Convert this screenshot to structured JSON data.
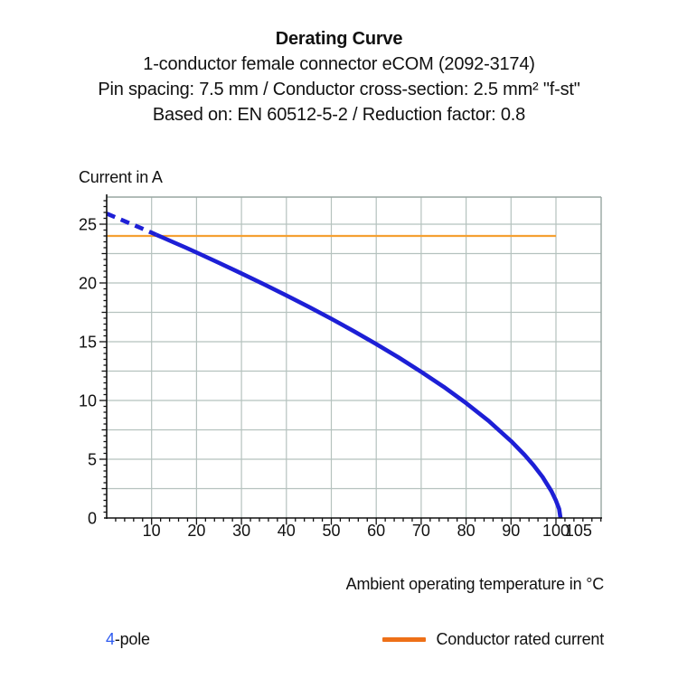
{
  "header": {
    "title": "Derating Curve",
    "line2": "1-conductor female connector eCOM (2092-3174)",
    "line3": "Pin spacing: 7.5 mm / Conductor cross-section: 2.5 mm² \"f-st\"",
    "line4": "Based on: EN 60512-5-2 / Reduction factor: 0.8"
  },
  "chart_data": {
    "type": "line",
    "title": "Derating Curve",
    "y_axis_label": "Current in A",
    "x_axis_label": "Ambient operating temperature in °C",
    "xlim": [
      0,
      110
    ],
    "ylim": [
      0,
      27.3
    ],
    "x_ticks": [
      10,
      20,
      30,
      40,
      50,
      60,
      70,
      80,
      90,
      100,
      105
    ],
    "y_ticks": [
      0,
      5,
      10,
      15,
      20,
      25
    ],
    "x_gridline_step": 10,
    "y_gridline_step": 2.5,
    "x_minor_tick_step": 2,
    "y_minor_tick_step": 0.5,
    "grid": true,
    "legend_position": "bottom",
    "series": [
      {
        "name": "4-pole",
        "type": "curve",
        "color": "#1d1fd6",
        "style": "dashed-then-solid",
        "dashed_points": [
          [
            0,
            25.9
          ],
          [
            2.5,
            25.5
          ],
          [
            5,
            25.1
          ],
          [
            7.5,
            24.69
          ],
          [
            10,
            24.28
          ],
          [
            11,
            24.11
          ]
        ],
        "solid_points": [
          [
            11,
            24.11
          ],
          [
            12.5,
            23.86
          ],
          [
            15,
            23.44
          ],
          [
            17.5,
            23.02
          ],
          [
            20,
            22.59
          ],
          [
            25,
            21.71
          ],
          [
            30,
            20.81
          ],
          [
            35,
            19.89
          ],
          [
            40,
            18.94
          ],
          [
            45,
            17.97
          ],
          [
            50,
            16.95
          ],
          [
            55,
            15.9
          ],
          [
            60,
            14.8
          ],
          [
            65,
            13.65
          ],
          [
            70,
            12.44
          ],
          [
            75,
            11.16
          ],
          [
            80,
            9.78
          ],
          [
            85,
            8.26
          ],
          [
            90,
            6.55
          ],
          [
            93,
            5.38
          ],
          [
            95,
            4.5
          ],
          [
            97,
            3.5
          ],
          [
            99,
            2.28
          ],
          [
            100,
            1.48
          ],
          [
            100.7,
            0.78
          ],
          [
            101,
            0
          ]
        ]
      },
      {
        "name": "Conductor rated current",
        "type": "hline",
        "color": "#f5a032",
        "value": 24,
        "x_extent": [
          0,
          100
        ]
      }
    ]
  },
  "legend": {
    "pole_number": "4",
    "pole_suffix": "-pole",
    "pole_number_color": "#2e5bf0",
    "rated_label": "Conductor rated current",
    "rated_swatch_color": "#ee7018"
  },
  "colors": {
    "grid": "#b5c2be",
    "frame": "#97a5a1",
    "axis": "#111111",
    "text": "#111111"
  }
}
